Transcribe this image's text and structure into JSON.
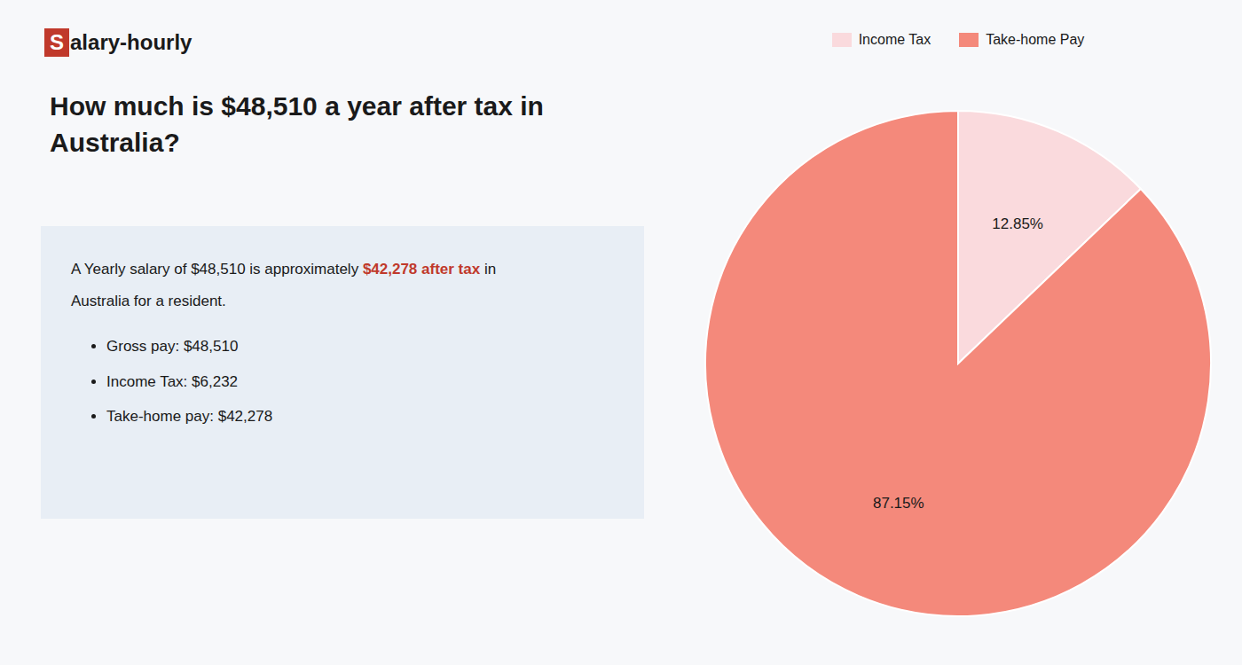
{
  "chart_data": {
    "type": "pie",
    "title": "How much is $48,510 a year after tax in Australia?",
    "categories": [
      "Income Tax",
      "Take-home Pay"
    ],
    "values": [
      12.85,
      87.15
    ],
    "value_labels": [
      "12.85%",
      "87.15%"
    ],
    "colors": [
      "#fadadd",
      "#f4897b"
    ],
    "data_labels": true,
    "legend": "top",
    "annotations": [
      {
        "text": "S",
        "color": "#c0392b"
      },
      {
        "text": "alary-hourly"
      },
      {
        "text": "A Yearly salary of $48,510 is approximately "
      },
      {
        "text": "$42,278 after tax",
        "color": "#c0392b"
      },
      {
        "text": " in"
      },
      {
        "text": "Australia for a resident."
      },
      {
        "text": "Gross pay: $48,510"
      },
      {
        "text": "Income Tax: $6,232"
      },
      {
        "text": "Take-home pay: $42,278"
      }
    ]
  }
}
